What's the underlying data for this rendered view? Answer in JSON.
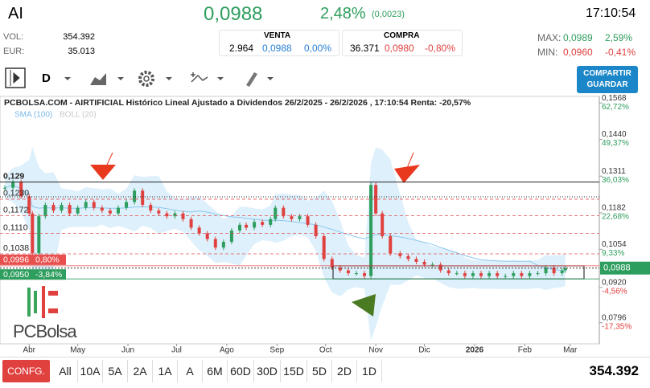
{
  "header": {
    "ticker": "AI",
    "price": "0,0988",
    "change_pct": "2,48%",
    "change": "(0,0023)",
    "time": "17:10:54",
    "vol_label": "VOL:",
    "vol": "354.392",
    "eur_label": "EUR:",
    "eur": "35.013",
    "venta": {
      "label": "VENTA",
      "qty": "2.964",
      "price": "0,0988",
      "pct": "0,00%"
    },
    "compra": {
      "label": "COMPRA",
      "qty": "36.371",
      "price": "0,0980",
      "pct": "-0,80%"
    },
    "max_label": "MAX:",
    "max": "0,0989",
    "max_pct": "2,59%",
    "min_label": "MIN:",
    "min": "0,0960",
    "min_pct": "-0,41%"
  },
  "toolbar": {
    "period": "D",
    "share": "COMPARTIR",
    "save": "GUARDAR"
  },
  "chart_data": {
    "type": "candlestick",
    "title": "PCBOLSA.COM - AIRTIFICIAL Histórico Lineal Ajustado a Dividendos 26/2/2025 - 26/2/2026 , 17:10:54 Renta: -20,57%",
    "indicators": [
      "SMA (100)",
      "BOLL (20)"
    ],
    "logo": "PCBolsa",
    "ylim": [
      0.0722,
      0.1591
    ],
    "xlim": [
      16,
      386
    ],
    "yticks": [
      {
        "value": 0.1568,
        "label": "0,1568"
      },
      {
        "value": 0.144,
        "label": "0,1440"
      },
      {
        "value": 0.1311,
        "label": "0,1311"
      },
      {
        "value": 0.1182,
        "label": "0,1182"
      },
      {
        "value": 0.1054,
        "label": "0,1054"
      },
      {
        "value": 0.092,
        "label": "0,0920"
      },
      {
        "value": 0.0796,
        "label": "0,0796"
      }
    ],
    "ytick_pct": [
      "62,72%",
      "49,37%",
      "36,03%",
      "22,68%",
      "9,33%",
      "-4,56%",
      "-17,35%"
    ],
    "last": {
      "value": 0.0988,
      "label": "0,0988"
    },
    "levels": [
      {
        "value": 0.129,
        "label": "0,129"
      },
      {
        "value": 0.123,
        "label": "0,1230"
      },
      {
        "value": 0.1172,
        "label": "0,1172"
      },
      {
        "value": 0.111,
        "label": "0,1110"
      },
      {
        "value": 0.1038,
        "label": "0,1038"
      }
    ],
    "box_levels": [
      {
        "value": 0.0996,
        "label": "0,0996",
        "pct": "0,80%"
      },
      {
        "value": 0.095,
        "label": "0,0950",
        "pct": "-3,84%"
      }
    ],
    "xticks": [
      {
        "value": 34,
        "label": "Abr"
      },
      {
        "value": 64,
        "label": "May"
      },
      {
        "value": 95,
        "label": "Jun"
      },
      {
        "value": 125,
        "label": "Jul"
      },
      {
        "value": 156,
        "label": "Ago"
      },
      {
        "value": 187,
        "label": "Sep"
      },
      {
        "value": 217,
        "label": "Oct"
      },
      {
        "value": 248,
        "label": "Nov"
      },
      {
        "value": 278,
        "label": "Dic"
      },
      {
        "value": 309,
        "label": "2026"
      },
      {
        "value": 340,
        "label": "Feb"
      },
      {
        "value": 368,
        "label": "Mar"
      }
    ],
    "x": [
      19,
      24,
      29,
      34,
      36,
      40,
      44,
      49,
      54,
      59,
      64,
      69,
      74,
      79,
      84,
      89,
      94,
      99,
      104,
      109,
      114,
      119,
      124,
      129,
      134,
      139,
      144,
      149,
      154,
      159,
      164,
      168,
      173,
      178,
      183,
      186,
      191,
      196,
      201,
      206,
      211,
      216,
      221,
      226,
      231,
      236,
      241,
      245,
      248,
      252,
      257,
      263,
      268,
      273,
      278,
      283,
      288,
      293,
      298,
      303,
      308,
      313,
      318,
      323,
      328,
      333,
      338,
      343,
      348,
      353,
      358,
      363,
      365
    ],
    "values": [
      0.127,
      0.129,
      0.124,
      0.118,
      0.104,
      0.117,
      0.121,
      0.119,
      0.121,
      0.118,
      0.12,
      0.122,
      0.12,
      0.119,
      0.118,
      0.12,
      0.122,
      0.126,
      0.121,
      0.119,
      0.118,
      0.117,
      0.118,
      0.116,
      0.113,
      0.111,
      0.109,
      0.106,
      0.108,
      0.112,
      0.114,
      0.113,
      0.115,
      0.114,
      0.116,
      0.12,
      0.117,
      0.116,
      0.117,
      0.114,
      0.11,
      0.102,
      0.099,
      0.098,
      0.097,
      0.097,
      0.096,
      0.128,
      0.118,
      0.11,
      0.104,
      0.103,
      0.102,
      0.101,
      0.1,
      0.1,
      0.098,
      0.097,
      0.097,
      0.096,
      0.097,
      0.096,
      0.097,
      0.096,
      0.096,
      0.097,
      0.096,
      0.097,
      0.097,
      0.099,
      0.097,
      0.098,
      0.0988
    ]
  },
  "ranges": [
    "All",
    "10A",
    "5A",
    "2A",
    "1A",
    "A",
    "6M",
    "60D",
    "30D",
    "15D",
    "5D",
    "2D",
    "1D"
  ],
  "config": "CONFG.",
  "footer_volume": "354.392"
}
